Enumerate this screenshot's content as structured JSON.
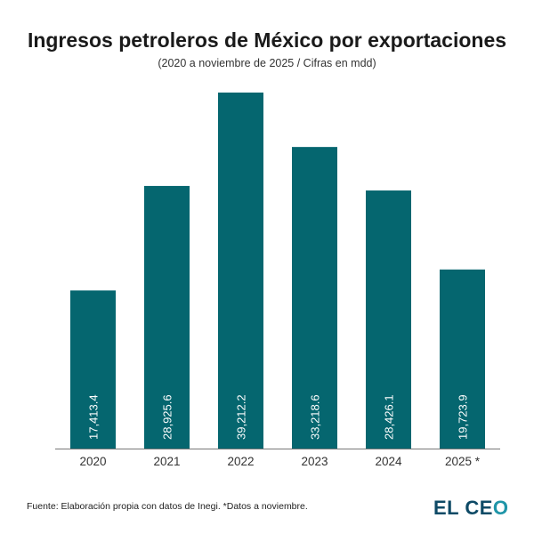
{
  "chart_data": {
    "type": "bar",
    "title": "Ingresos petroleros de México por exportaciones",
    "subtitle": "(2020 a noviembre de 2025 / Cifras en mdd)",
    "categories": [
      "2020",
      "2021",
      "2022",
      "2023",
      "2024",
      "2025 *"
    ],
    "values": [
      17413.4,
      28925.6,
      39212.2,
      33218.6,
      28426.1,
      19723.9
    ],
    "data_labels": [
      "17,413.4",
      "28,925.6",
      "39,212.2",
      "33,218.6",
      "28,426.1",
      "19,723.9"
    ],
    "xlabel": "",
    "ylabel": "",
    "grid": false,
    "bar_color": "#05666f",
    "source": "Fuente: Elaboración propia con datos de Inegi. *Datos a noviembre."
  },
  "brand": {
    "logo_text": "EL CEO",
    "logo_main": "EL CE",
    "logo_o": "O"
  }
}
